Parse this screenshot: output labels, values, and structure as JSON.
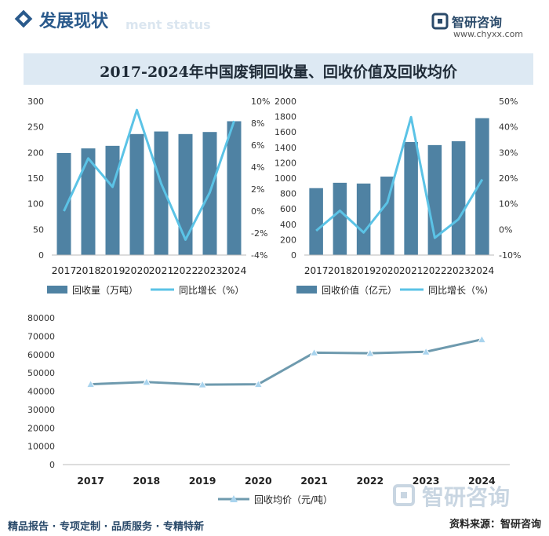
{
  "header": {
    "title": "发展现状",
    "subtitle_watermark": "ment status",
    "brand_name": "智研咨询",
    "brand_url": "www.chyxx.com"
  },
  "figure_title": "2017-2024年中国废铜回收量、回收价值及回收均价",
  "colors": {
    "bar": "#4f82a3",
    "line": "#5bc3e6",
    "line_dark": "#6e9aae",
    "marker": "#a9d4ee"
  },
  "chart_data": [
    {
      "type": "bar",
      "categories": [
        "2017",
        "2018",
        "2019",
        "2020",
        "2021",
        "2022",
        "2023",
        "2024"
      ],
      "series": [
        {
          "name": "回收量（万吨）",
          "axis": "left",
          "values": [
            199,
            208,
            213,
            236,
            241,
            236,
            240,
            261
          ]
        },
        {
          "name": "同比增长（%）",
          "axis": "right",
          "type": "line",
          "values": [
            0.0,
            4.8,
            2.2,
            9.2,
            2.5,
            -2.6,
            1.7,
            8.2
          ]
        }
      ],
      "left_ticks": [
        "0",
        "50",
        "100",
        "150",
        "200",
        "250",
        "300"
      ],
      "right_ticks": [
        "-4%",
        "-2%",
        "0%",
        "2%",
        "4%",
        "6%",
        "8%",
        "10%"
      ],
      "ylim_left": [
        0,
        300
      ],
      "ylim_right": [
        -4,
        10
      ]
    },
    {
      "type": "bar",
      "categories": [
        "2017",
        "2018",
        "2019",
        "2020",
        "2021",
        "2022",
        "2023",
        "2024"
      ],
      "series": [
        {
          "name": "回收价值（亿元）",
          "axis": "left",
          "values": [
            870,
            940,
            930,
            1020,
            1470,
            1430,
            1480,
            1780
          ]
        },
        {
          "name": "同比增长（%）",
          "axis": "right",
          "type": "line",
          "values": [
            -0.5,
            7.3,
            -1.2,
            10.5,
            43.8,
            -3.3,
            4.0,
            19.5
          ]
        }
      ],
      "left_ticks": [
        "0",
        "200",
        "400",
        "600",
        "800",
        "1000",
        "1200",
        "1400",
        "1600",
        "1800",
        "2000"
      ],
      "right_ticks": [
        "-10%",
        "0%",
        "10%",
        "20%",
        "30%",
        "40%",
        "50%"
      ],
      "ylim_left": [
        0,
        2000
      ],
      "ylim_right": [
        -10,
        50
      ]
    },
    {
      "type": "line",
      "categories": [
        "2017",
        "2018",
        "2019",
        "2020",
        "2021",
        "2022",
        "2023",
        "2024"
      ],
      "series": [
        {
          "name": "回收均价（元/吨）",
          "values": [
            43800,
            45000,
            43600,
            43800,
            61000,
            60700,
            61500,
            68200
          ]
        }
      ],
      "y_ticks": [
        "0",
        "10000",
        "20000",
        "30000",
        "40000",
        "50000",
        "60000",
        "70000",
        "80000"
      ],
      "ylim": [
        0,
        80000
      ]
    }
  ],
  "footer": {
    "left": "精品报告 · 专项定制 · 品质服务 · 专精特新",
    "right": "资料来源：智研咨询",
    "watermark": "智研咨询"
  }
}
